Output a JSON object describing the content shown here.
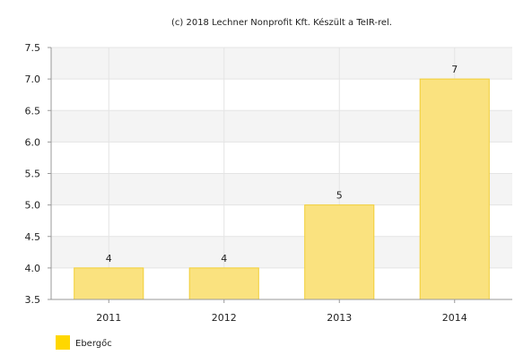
{
  "credit": "(c) 2018 Lechner Nonprofit Kft. Készült a TeIR-rel.",
  "colors": {
    "bar_fill": "#FAE27F",
    "bar_stroke": "#F2CF35",
    "legend_swatch": "#FFD700",
    "band": "#F4F4F4",
    "grid": "#E4E4E4",
    "axis": "#999999"
  },
  "chart_data": {
    "type": "bar",
    "categories": [
      "2011",
      "2012",
      "2013",
      "2014"
    ],
    "series": [
      {
        "name": "Ebergőc",
        "values": [
          4,
          4,
          5,
          7
        ],
        "data_labels": [
          "4",
          "4",
          "5",
          "7"
        ]
      }
    ],
    "ylim": [
      3.5,
      7.5
    ],
    "yticks": [
      3.5,
      4.0,
      4.5,
      5.0,
      5.5,
      6.0,
      6.5,
      7.0,
      7.5
    ],
    "ytick_labels": [
      "3.5",
      "4.0",
      "4.5",
      "5.0",
      "5.5",
      "6.0",
      "6.5",
      "7.0",
      "7.5"
    ],
    "grid": true,
    "legend_position": "bottom-left"
  }
}
